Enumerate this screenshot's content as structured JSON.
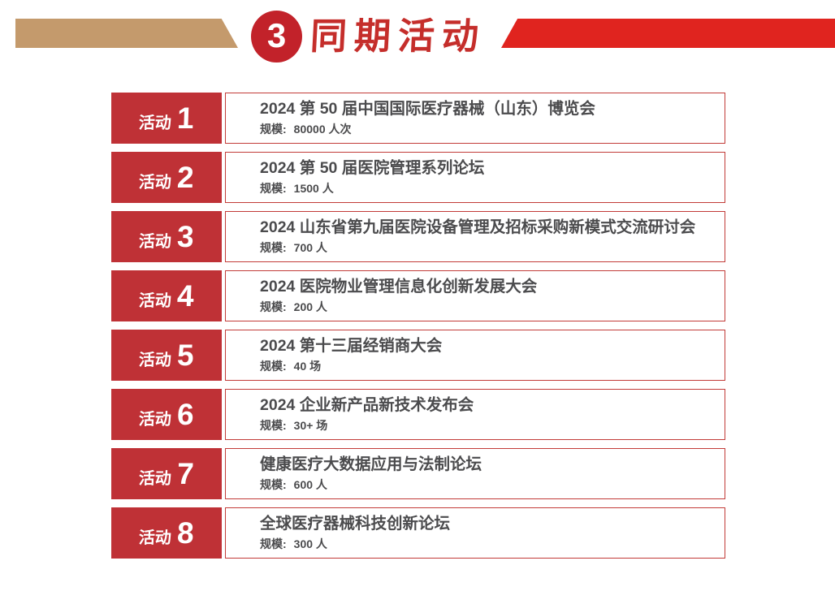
{
  "header": {
    "badge_number": "3",
    "title": "同期活动"
  },
  "activities": [
    {
      "label": "活动",
      "number": "1",
      "title": "2024 第 50 届中国国际医疗器械（山东）博览会",
      "scale_prefix": "规模:",
      "scale_value": "80000 人次"
    },
    {
      "label": "活动",
      "number": "2",
      "title": "2024 第 50 届医院管理系列论坛",
      "scale_prefix": "规模:",
      "scale_value": "1500 人"
    },
    {
      "label": "活动",
      "number": "3",
      "title": "2024 山东省第九届医院设备管理及招标采购新模式交流研讨会",
      "scale_prefix": "规模:",
      "scale_value": "700 人"
    },
    {
      "label": "活动",
      "number": "4",
      "title": "2024 医院物业管理信息化创新发展大会",
      "scale_prefix": "规模:",
      "scale_value": "200 人"
    },
    {
      "label": "活动",
      "number": "5",
      "title": "2024 第十三届经销商大会",
      "scale_prefix": "规模:",
      "scale_value": "40 场"
    },
    {
      "label": "活动",
      "number": "6",
      "title": "2024 企业新产品新技术发布会",
      "scale_prefix": "规模:",
      "scale_value": "30+ 场"
    },
    {
      "label": "活动",
      "number": "7",
      "title": "健康医疗大数据应用与法制论坛",
      "scale_prefix": "规模:",
      "scale_value": "600 人"
    },
    {
      "label": "活动",
      "number": "8",
      "title": "全球医疗器械科技创新论坛",
      "scale_prefix": "规模:",
      "scale_value": "300 人"
    }
  ],
  "colors": {
    "banner_tan": "#C49A6C",
    "banner_red": "#E0241F",
    "badge_red": "#C2222A",
    "title_red": "#C52E2B",
    "label_red": "#BF3136",
    "border_red": "#C23B38",
    "text_gray": "#4B4B4D"
  }
}
